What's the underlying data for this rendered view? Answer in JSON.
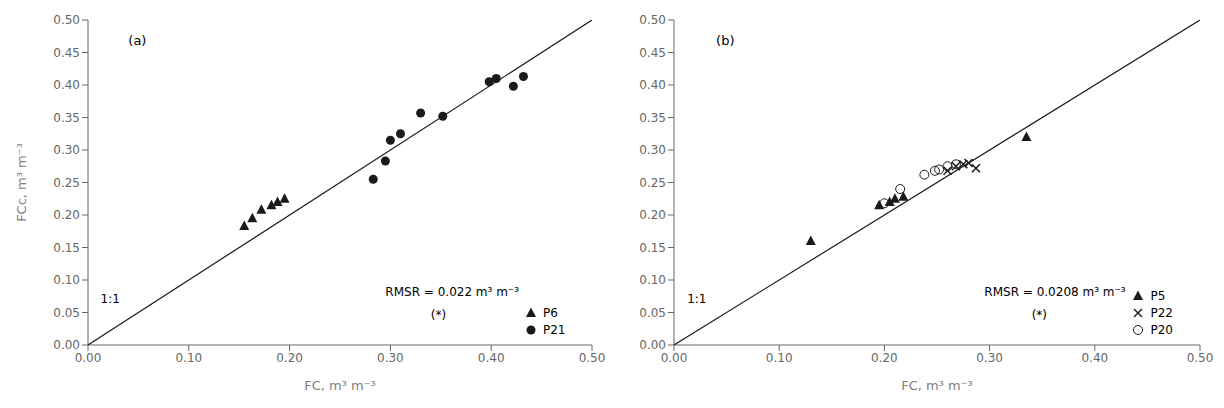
{
  "chart_data": [
    {
      "type": "scatter",
      "title": "(a)",
      "xlabel": "FC, m³ m⁻³",
      "ylabel": "FCc, m³ m⁻³",
      "annotations": [
        "RMSR = 0.022 m³ m⁻³",
        "(*)"
      ],
      "legend": "lower right",
      "grid": false,
      "xlim": [
        0.0,
        0.5
      ],
      "ylim": [
        0.0,
        0.5
      ],
      "xticks": [
        {
          "value": 0.0,
          "label": "0.00"
        },
        {
          "value": 0.1,
          "label": "0.10"
        },
        {
          "value": 0.2,
          "label": "0.20"
        },
        {
          "value": 0.3,
          "label": "0.30"
        },
        {
          "value": 0.4,
          "label": "0.40"
        },
        {
          "value": 0.5,
          "label": "0.50"
        }
      ],
      "yticks": [
        {
          "value": 0.0,
          "label": "0.00"
        },
        {
          "value": 0.05,
          "label": "0.05"
        },
        {
          "value": 0.1,
          "label": "0.10"
        },
        {
          "value": 0.15,
          "label": "0.15"
        },
        {
          "value": 0.2,
          "label": "0.20"
        },
        {
          "value": 0.25,
          "label": "0.25"
        },
        {
          "value": 0.3,
          "label": "0.30"
        },
        {
          "value": 0.35,
          "label": "0.35"
        },
        {
          "value": 0.4,
          "label": "0.40"
        },
        {
          "value": 0.45,
          "label": "0.45"
        },
        {
          "value": 0.5,
          "label": "0.50"
        }
      ],
      "series": [
        {
          "name": "P6",
          "marker": "triangle",
          "color": "#1a1a1a",
          "x": [
            0.155,
            0.163,
            0.172,
            0.182,
            0.188,
            0.195
          ],
          "values": [
            0.183,
            0.195,
            0.208,
            0.215,
            0.22,
            0.225
          ]
        },
        {
          "name": "P21",
          "marker": "circle",
          "color": "#1a1a1a",
          "x": [
            0.283,
            0.295,
            0.3,
            0.31,
            0.33,
            0.352,
            0.398,
            0.405,
            0.422,
            0.432
          ],
          "values": [
            0.255,
            0.283,
            0.315,
            0.325,
            0.357,
            0.352,
            0.405,
            0.41,
            0.398,
            0.413
          ]
        },
        {
          "name": "1:1",
          "type": "line",
          "color": "#1a1a1a",
          "x": [
            0.0,
            0.5
          ],
          "values": [
            0.0,
            0.5
          ]
        }
      ]
    },
    {
      "type": "scatter",
      "title": "(b)",
      "xlabel": "FC, m³ m⁻³",
      "annotations": [
        "RMSR = 0.0208 m³ m⁻³",
        "(*)"
      ],
      "legend": "lower right",
      "grid": false,
      "xlim": [
        0.0,
        0.5
      ],
      "ylim": [
        0.0,
        0.5
      ],
      "xticks": [
        {
          "value": 0.0,
          "label": "0.00"
        },
        {
          "value": 0.1,
          "label": "0.10"
        },
        {
          "value": 0.2,
          "label": "0.20"
        },
        {
          "value": 0.3,
          "label": "0.30"
        },
        {
          "value": 0.4,
          "label": "0.40"
        },
        {
          "value": 0.5,
          "label": "0.50"
        }
      ],
      "yticks": [
        {
          "value": 0.0,
          "label": "0.00"
        },
        {
          "value": 0.05,
          "label": "0.05"
        },
        {
          "value": 0.1,
          "label": "0.10"
        },
        {
          "value": 0.15,
          "label": "0.15"
        },
        {
          "value": 0.2,
          "label": "0.20"
        },
        {
          "value": 0.25,
          "label": "0.25"
        },
        {
          "value": 0.3,
          "label": "0.30"
        },
        {
          "value": 0.35,
          "label": "0.35"
        },
        {
          "value": 0.4,
          "label": "0.40"
        },
        {
          "value": 0.45,
          "label": "0.45"
        },
        {
          "value": 0.5,
          "label": "0.50"
        }
      ],
      "series": [
        {
          "name": "P5",
          "marker": "triangle",
          "color": "#1a1a1a",
          "x": [
            0.13,
            0.195,
            0.205,
            0.21,
            0.218,
            0.335
          ],
          "values": [
            0.16,
            0.215,
            0.22,
            0.225,
            0.228,
            0.32
          ]
        },
        {
          "name": "P22",
          "marker": "x",
          "color": "#1a1a1a",
          "x": [
            0.26,
            0.268,
            0.275,
            0.28,
            0.287
          ],
          "values": [
            0.268,
            0.275,
            0.278,
            0.28,
            0.272
          ]
        },
        {
          "name": "P20",
          "marker": "open circle",
          "color": "#1a1a1a",
          "x": [
            0.2,
            0.215,
            0.238,
            0.248,
            0.252,
            0.26,
            0.268
          ],
          "values": [
            0.218,
            0.24,
            0.262,
            0.268,
            0.27,
            0.275,
            0.278
          ]
        },
        {
          "name": "1:1",
          "type": "line",
          "color": "#1a1a1a",
          "x": [
            0.0,
            0.5
          ],
          "values": [
            0.0,
            0.5
          ]
        }
      ]
    }
  ]
}
